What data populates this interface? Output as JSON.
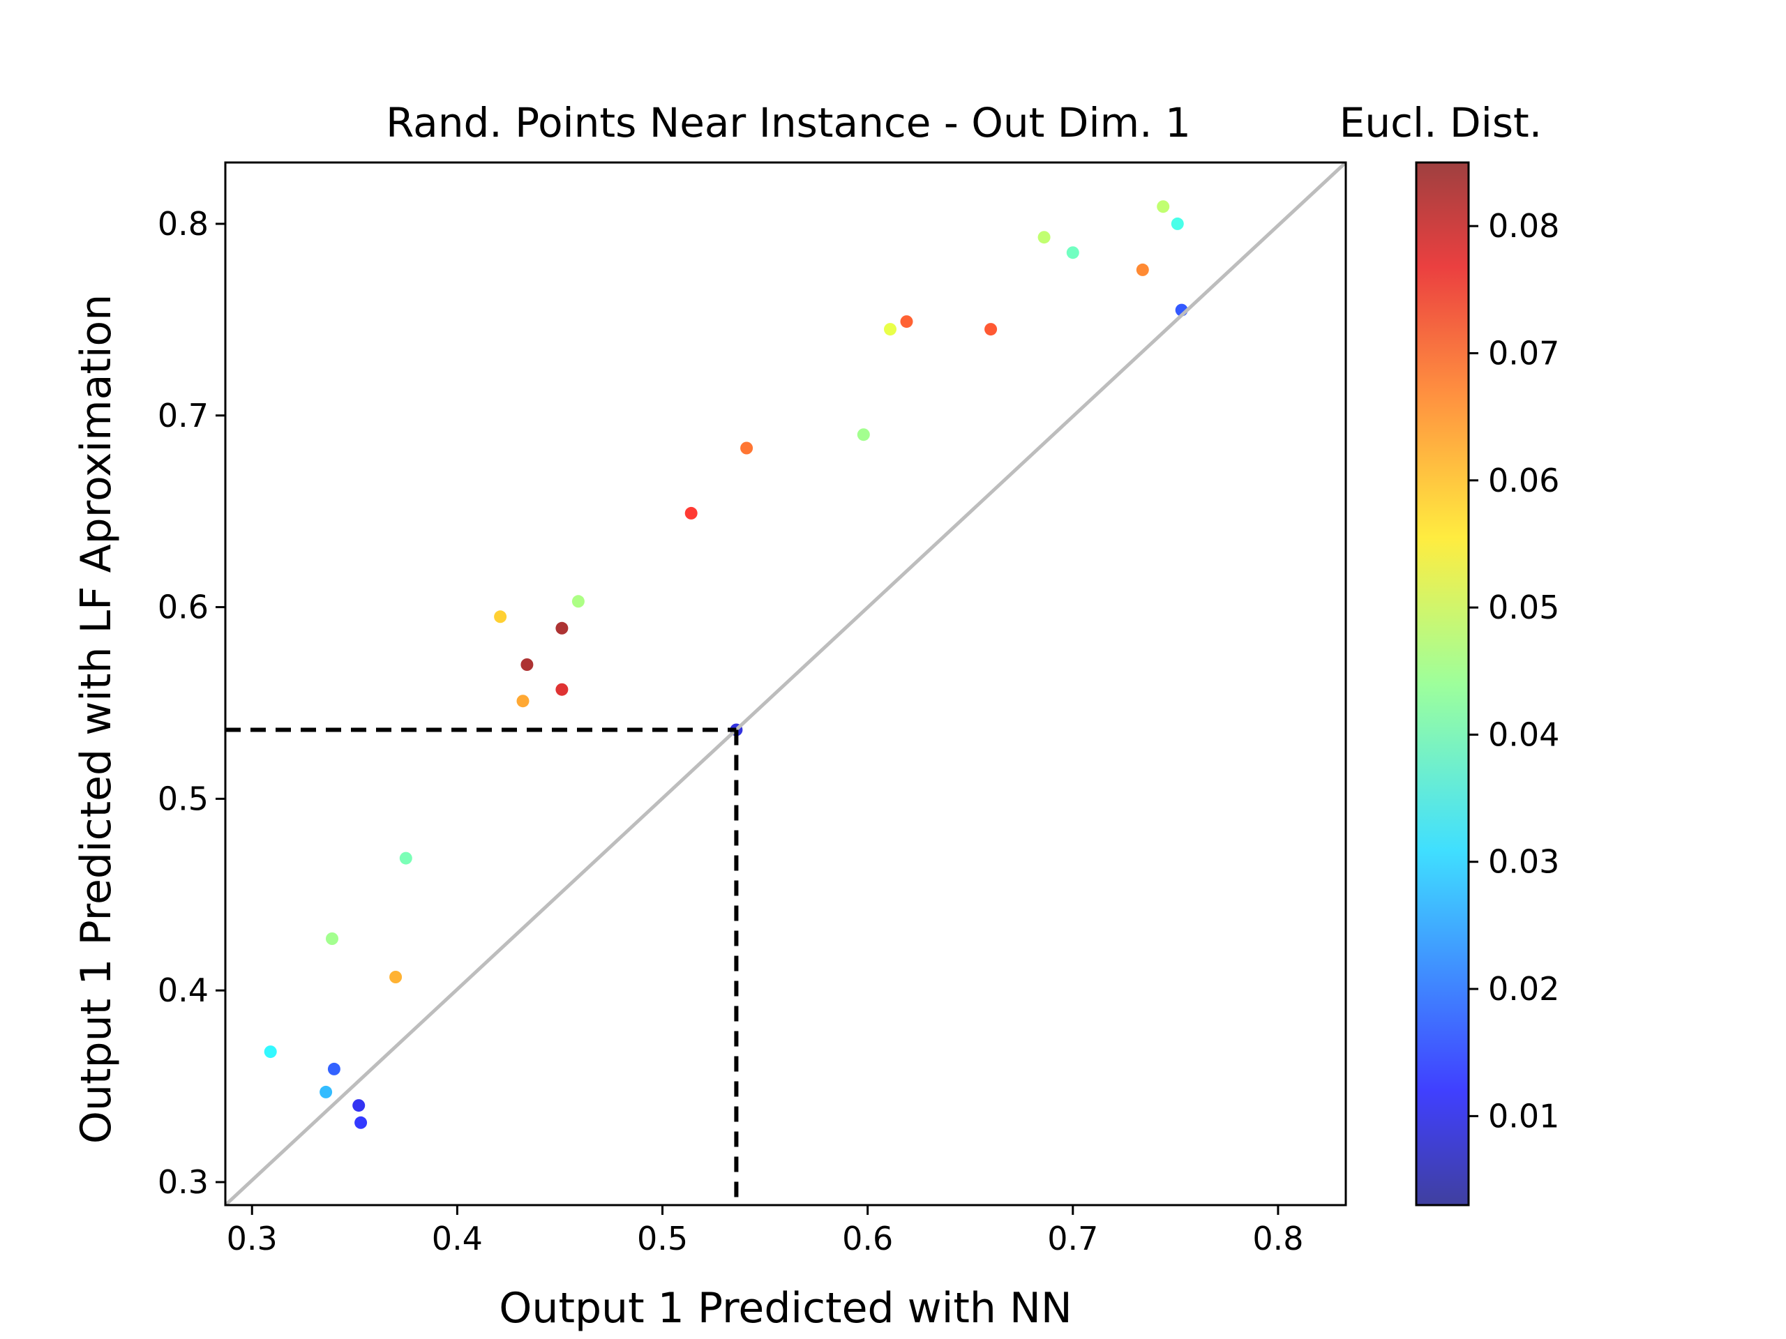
{
  "chart_data": {
    "type": "scatter",
    "title": "Rand. Points Near Instance - Out Dim. 1",
    "colorbar_title": "Eucl. Dist.",
    "xlabel": "Output 1 Predicted with NN",
    "ylabel": "Output 1 Predicted with LF Aproximation",
    "xlim": [
      0.287,
      0.833
    ],
    "ylim": [
      0.288,
      0.832
    ],
    "x_ticks": [
      "0.3",
      "0.4",
      "0.5",
      "0.6",
      "0.7",
      "0.8"
    ],
    "y_ticks": [
      "0.3",
      "0.4",
      "0.5",
      "0.6",
      "0.7",
      "0.8"
    ],
    "colorbar": {
      "colormap": "jet",
      "range": [
        0.003,
        0.085
      ],
      "ticks": [
        "0.01",
        "0.02",
        "0.03",
        "0.04",
        "0.05",
        "0.06",
        "0.07",
        "0.08"
      ]
    },
    "reference_line": {
      "from": [
        0.287,
        0.288
      ],
      "to": [
        0.833,
        0.832
      ],
      "color": "#bdbdbd"
    },
    "instance_point": {
      "x": 0.536,
      "y": 0.536
    },
    "series": [
      {
        "points": [
          [
            0.309,
            0.368,
            0.033
          ],
          [
            0.336,
            0.347,
            0.027
          ],
          [
            0.34,
            0.359,
            0.018
          ],
          [
            0.352,
            0.34,
            0.012
          ],
          [
            0.353,
            0.331,
            0.014
          ],
          [
            0.37,
            0.407,
            0.062
          ],
          [
            0.339,
            0.427,
            0.045
          ],
          [
            0.375,
            0.469,
            0.041
          ],
          [
            0.421,
            0.595,
            0.059
          ],
          [
            0.434,
            0.57,
            0.083
          ],
          [
            0.451,
            0.589,
            0.083
          ],
          [
            0.451,
            0.557,
            0.078
          ],
          [
            0.432,
            0.551,
            0.063
          ],
          [
            0.459,
            0.603,
            0.046
          ],
          [
            0.514,
            0.649,
            0.074
          ],
          [
            0.541,
            0.683,
            0.068
          ],
          [
            0.619,
            0.749,
            0.07
          ],
          [
            0.66,
            0.745,
            0.071
          ],
          [
            0.744,
            0.809,
            0.048
          ],
          [
            0.751,
            0.8,
            0.036
          ],
          [
            0.734,
            0.776,
            0.066
          ],
          [
            0.686,
            0.793,
            0.048
          ],
          [
            0.7,
            0.785,
            0.04
          ],
          [
            0.753,
            0.755,
            0.017
          ],
          [
            0.611,
            0.745,
            0.052
          ],
          [
            0.598,
            0.69,
            0.045
          ],
          [
            0.536,
            0.536,
            0.01
          ]
        ]
      }
    ]
  }
}
